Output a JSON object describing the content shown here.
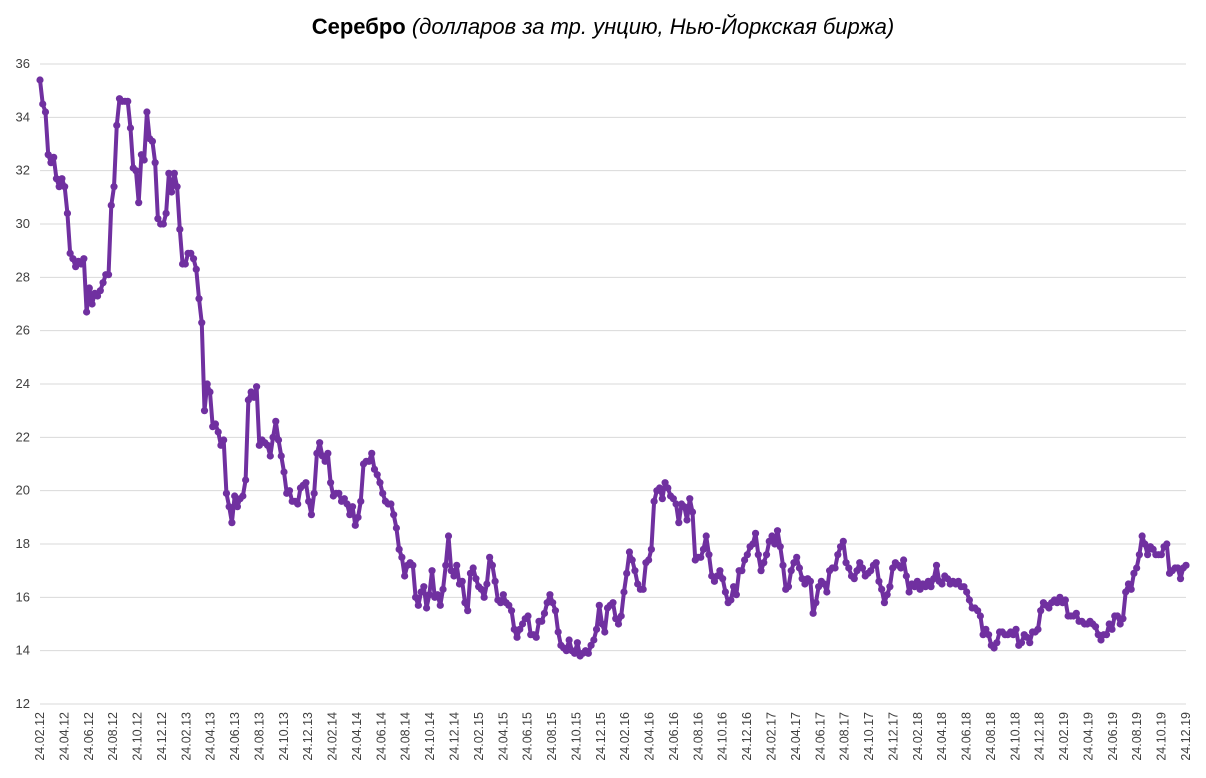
{
  "chart_data": {
    "type": "line",
    "title": "Серебро",
    "subtitle": "(долларов за тр. унцию, Нью-Йоркская биржа)",
    "xlabel": "",
    "ylabel": "",
    "ylim": [
      12,
      36
    ],
    "yticks": [
      12,
      14,
      16,
      18,
      20,
      22,
      24,
      26,
      28,
      30,
      32,
      34,
      36
    ],
    "grid": true,
    "legend": "none",
    "color": "#7030a0",
    "xtick_labels": [
      "24.02.12",
      "24.04.12",
      "24.06.12",
      "24.08.12",
      "24.10.12",
      "24.12.12",
      "24.02.13",
      "24.04.13",
      "24.06.13",
      "24.08.13",
      "24.10.13",
      "24.12.13",
      "24.02.14",
      "24.04.14",
      "24.06.14",
      "24.08.14",
      "24.10.14",
      "24.12.14",
      "24.02.15",
      "24.04.15",
      "24.06.15",
      "24.08.15",
      "24.10.15",
      "24.12.15",
      "24.02.16",
      "24.04.16",
      "24.06.16",
      "24.08.16",
      "24.10.16",
      "24.12.16",
      "24.02.17",
      "24.04.17",
      "24.06.17",
      "24.08.17",
      "24.10.17",
      "24.12.17",
      "24.02.18",
      "24.04.18",
      "24.06.18",
      "24.08.18",
      "24.10.18",
      "24.12.18",
      "24.02.19",
      "24.04.19",
      "24.06.19",
      "24.08.19",
      "24.10.19",
      "24.12.19"
    ],
    "values": [
      35.4,
      34.5,
      34.2,
      32.6,
      32.3,
      32.5,
      31.7,
      31.4,
      31.7,
      31.4,
      30.4,
      28.9,
      28.7,
      28.4,
      28.6,
      28.5,
      28.7,
      26.7,
      27.6,
      27.0,
      27.4,
      27.3,
      27.5,
      27.8,
      28.1,
      28.1,
      30.7,
      31.4,
      33.7,
      34.7,
      34.6,
      34.6,
      34.6,
      33.6,
      32.1,
      32.0,
      30.8,
      32.6,
      32.4,
      34.2,
      33.2,
      33.1,
      32.3,
      30.2,
      30.0,
      30.0,
      30.4,
      31.9,
      31.2,
      31.9,
      31.4,
      29.8,
      28.5,
      28.5,
      28.9,
      28.9,
      28.7,
      28.3,
      27.2,
      26.3,
      23.0,
      24.0,
      23.7,
      22.4,
      22.5,
      22.2,
      21.7,
      21.9,
      19.9,
      19.4,
      18.8,
      19.8,
      19.4,
      19.7,
      19.8,
      20.4,
      23.4,
      23.7,
      23.5,
      23.9,
      21.7,
      21.9,
      21.8,
      21.7,
      21.3,
      22.0,
      22.6,
      21.9,
      21.3,
      20.7,
      19.9,
      20.0,
      19.6,
      19.6,
      19.5,
      20.1,
      20.2,
      20.3,
      19.6,
      19.1,
      19.9,
      21.4,
      21.8,
      21.3,
      21.1,
      21.4,
      20.3,
      19.8,
      19.9,
      19.9,
      19.6,
      19.7,
      19.5,
      19.1,
      19.4,
      18.7,
      19.0,
      19.6,
      21.0,
      21.1,
      21.1,
      21.4,
      20.8,
      20.6,
      20.3,
      19.9,
      19.6,
      19.5,
      19.5,
      19.1,
      18.6,
      17.8,
      17.5,
      16.8,
      17.2,
      17.3,
      17.2,
      16.0,
      15.7,
      16.2,
      16.4,
      15.6,
      16.1,
      17.0,
      16.0,
      16.1,
      15.7,
      16.3,
      17.2,
      18.3,
      17.0,
      16.8,
      17.2,
      16.5,
      16.6,
      15.8,
      15.5,
      16.9,
      17.1,
      16.7,
      16.4,
      16.3,
      16.0,
      16.5,
      17.5,
      17.2,
      16.6,
      15.9,
      15.8,
      16.1,
      15.8,
      15.7,
      15.5,
      14.8,
      14.5,
      14.8,
      15.0,
      15.2,
      15.3,
      14.6,
      14.6,
      14.5,
      15.1,
      15.1,
      15.4,
      15.8,
      16.1,
      15.8,
      15.5,
      14.7,
      14.2,
      14.1,
      14.0,
      14.4,
      14.0,
      13.9,
      14.3,
      13.8,
      13.9,
      14.0,
      13.9,
      14.2,
      14.4,
      14.8,
      15.7,
      15.0,
      14.7,
      15.6,
      15.7,
      15.8,
      15.2,
      15.0,
      15.3,
      16.2,
      16.9,
      17.7,
      17.4,
      17.0,
      16.5,
      16.3,
      16.3,
      17.3,
      17.4,
      17.8,
      19.6,
      20.0,
      20.1,
      19.7,
      20.3,
      20.1,
      19.8,
      19.7,
      19.5,
      18.8,
      19.5,
      19.4,
      18.9,
      19.7,
      19.2,
      17.4,
      17.5,
      17.5,
      17.8,
      18.3,
      17.6,
      16.8,
      16.6,
      16.8,
      17.0,
      16.7,
      16.2,
      15.8,
      15.9,
      16.4,
      16.1,
      17.0,
      17.0,
      17.4,
      17.6,
      17.9,
      18.0,
      18.4,
      17.6,
      17.0,
      17.3,
      17.6,
      18.1,
      18.3,
      18.0,
      18.5,
      17.9,
      17.2,
      16.3,
      16.4,
      17.0,
      17.3,
      17.5,
      17.1,
      16.7,
      16.5,
      16.7,
      16.6,
      15.4,
      15.8,
      16.4,
      16.6,
      16.5,
      16.2,
      17.0,
      17.1,
      17.1,
      17.6,
      17.9,
      18.1,
      17.3,
      17.1,
      16.8,
      16.7,
      17.0,
      17.3,
      17.1,
      16.8,
      16.9,
      17.0,
      17.2,
      17.3,
      16.6,
      16.3,
      15.8,
      16.1,
      16.4,
      17.1,
      17.3,
      17.2,
      17.1,
      17.4,
      16.8,
      16.2,
      16.5,
      16.4,
      16.6,
      16.3,
      16.5,
      16.4,
      16.6,
      16.4,
      16.7,
      17.2,
      16.6,
      16.5,
      16.8,
      16.7,
      16.5,
      16.6,
      16.5,
      16.6,
      16.4,
      16.4,
      16.2,
      15.9,
      15.6,
      15.6,
      15.5,
      15.3,
      14.6,
      14.8,
      14.6,
      14.2,
      14.1,
      14.3,
      14.7,
      14.7,
      14.6,
      14.6,
      14.7,
      14.6,
      14.8,
      14.2,
      14.3,
      14.6,
      14.5,
      14.3,
      14.7,
      14.7,
      14.8,
      15.5,
      15.8,
      15.7,
      15.6,
      15.8,
      15.9,
      15.8,
      16.0,
      15.8,
      15.9,
      15.3,
      15.3,
      15.3,
      15.4,
      15.1,
      15.1,
      15.0,
      15.0,
      15.1,
      15.0,
      14.9,
      14.6,
      14.4,
      14.6,
      14.6,
      15.0,
      14.8,
      15.3,
      15.3,
      15.0,
      15.2,
      16.2,
      16.5,
      16.3,
      16.9,
      17.1,
      17.6,
      18.3,
      18.0,
      17.6,
      17.9,
      17.8,
      17.6,
      17.6,
      17.6,
      17.9,
      18.0,
      16.9,
      17.0,
      17.1,
      17.1,
      16.7,
      17.1,
      17.2
    ]
  }
}
